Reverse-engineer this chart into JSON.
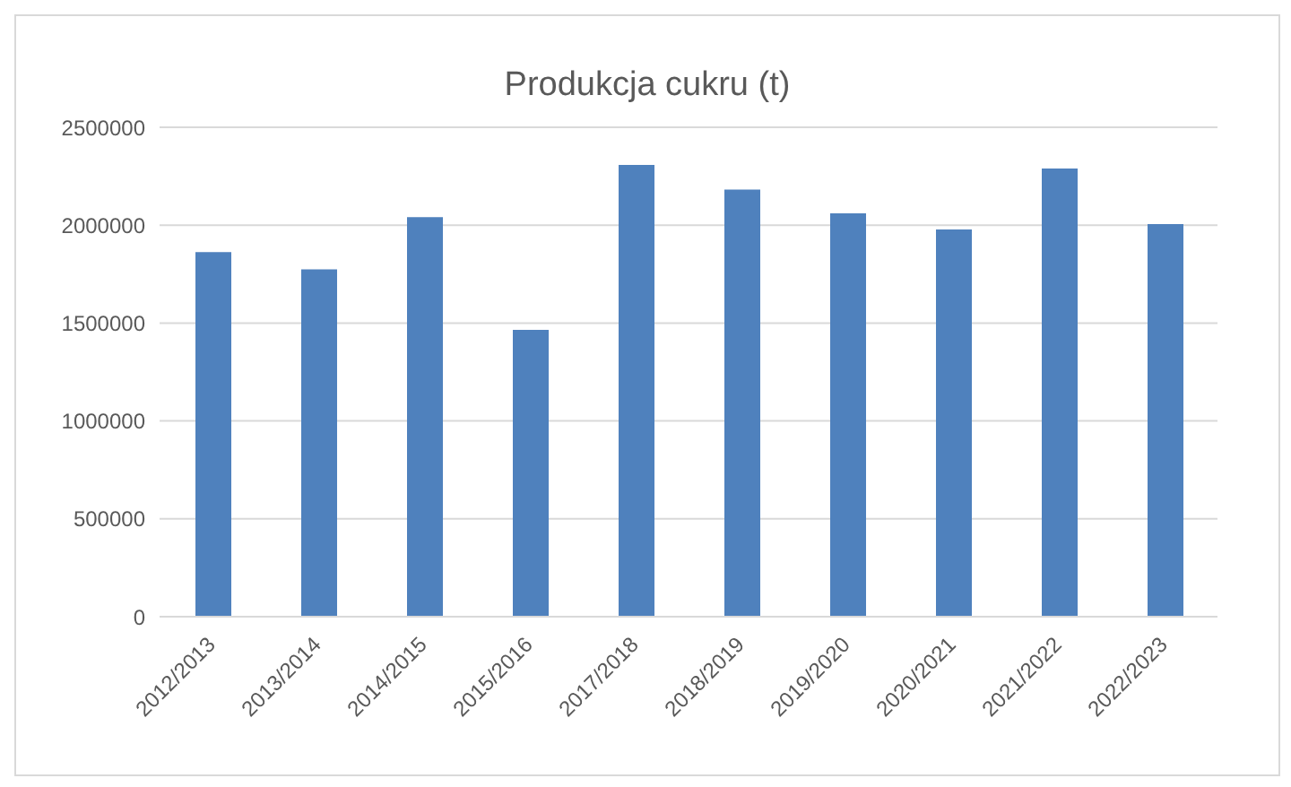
{
  "chart_data": {
    "type": "bar",
    "title": "Produkcja cukru (t)",
    "categories": [
      "2012/2013",
      "2013/2014",
      "2014/2015",
      "2015/2016",
      "2017/2018",
      "2018/2019",
      "2019/2020",
      "2020/2021",
      "2021/2022",
      "2022/2023"
    ],
    "values": [
      1862000,
      1774000,
      2041000,
      1465000,
      2308000,
      2182000,
      2060000,
      1978000,
      2289000,
      2006000
    ],
    "color": "#4f81bd",
    "ylim": [
      0,
      2500000
    ],
    "yticks": [
      0,
      500000,
      1000000,
      1500000,
      2000000,
      2500000
    ],
    "grid": "y"
  }
}
